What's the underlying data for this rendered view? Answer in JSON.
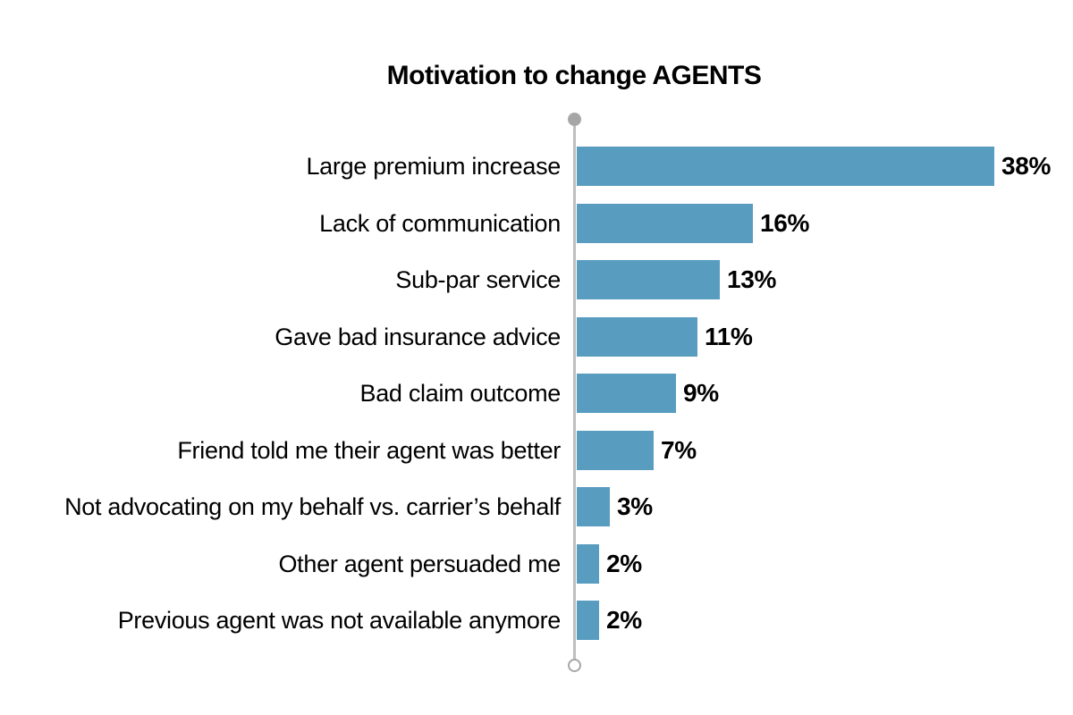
{
  "title": "Motivation to change AGENTS",
  "chart_data": {
    "type": "bar",
    "orientation": "horizontal",
    "title": "Motivation to change AGENTS",
    "categories": [
      "Large premium increase",
      "Lack of communication",
      "Sub-par service",
      "Gave bad insurance advice",
      "Bad claim outcome",
      "Friend told me their agent was better",
      "Not advocating on my behalf vs. carrier’s behalf",
      "Other agent persuaded me",
      "Previous agent was not available anymore"
    ],
    "values": [
      38,
      16,
      13,
      11,
      9,
      7,
      3,
      2,
      2
    ],
    "value_labels": [
      "38%",
      "16%",
      "13%",
      "11%",
      "9%",
      "7%",
      "3%",
      "2%",
      "2%"
    ],
    "unit": "percent",
    "xlim": [
      0,
      40
    ],
    "grid": false,
    "legend": "none",
    "bar_color": "#589CC0",
    "axis_line_color": "#BFBFBF",
    "axis_top_marker": "filled-circle",
    "axis_bottom_marker": "open-circle",
    "marker_color": "#A6A6A6",
    "text_color": "#000000",
    "background_color": "#FFFFFF"
  }
}
